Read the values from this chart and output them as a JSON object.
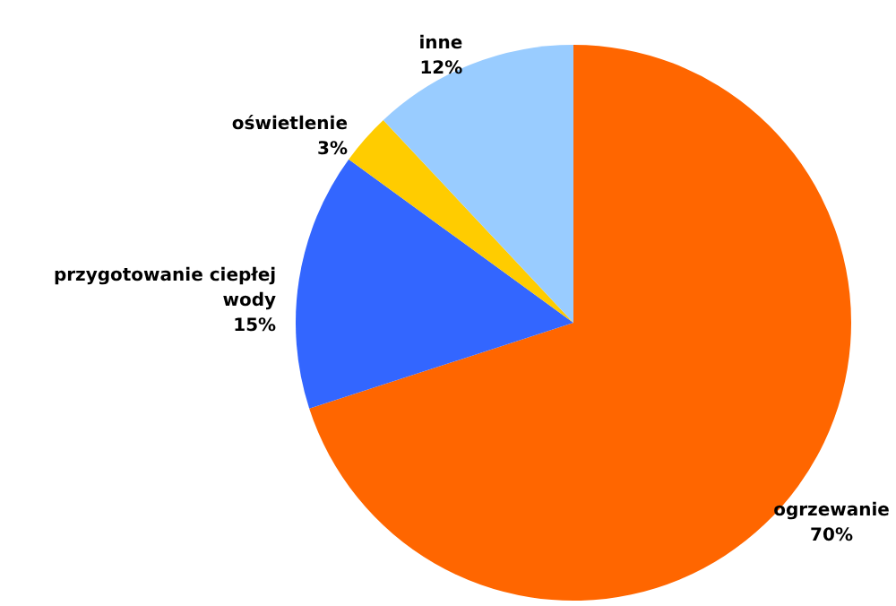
{
  "chart_data": {
    "type": "pie",
    "categories": [
      "ogrzewanie",
      "przygotowanie ciepłej wody",
      "oświetlenie",
      "inne"
    ],
    "values": [
      70,
      15,
      3,
      12
    ],
    "value_labels": [
      "70%",
      "15%",
      "3%",
      "12%"
    ],
    "colors": [
      "#ff6600",
      "#3366ff",
      "#ffcc00",
      "#99ccff"
    ]
  }
}
